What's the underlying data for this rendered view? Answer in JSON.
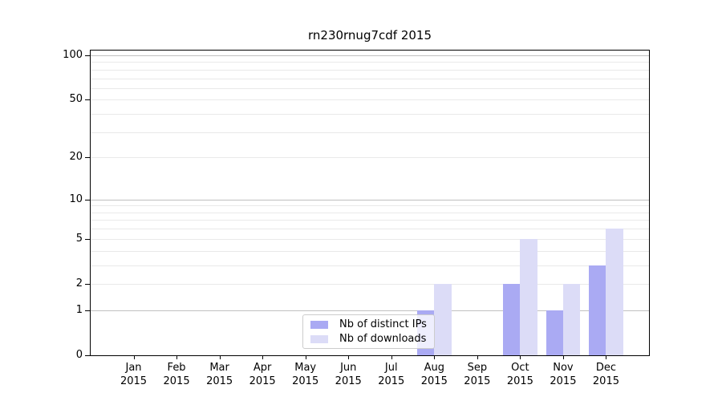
{
  "chart_data": {
    "type": "bar",
    "title": "rn230rnug7cdf 2015",
    "categories": [
      "Jan 2015",
      "Feb 2015",
      "Mar 2015",
      "Apr 2015",
      "May 2015",
      "Jun 2015",
      "Jul 2015",
      "Aug 2015",
      "Sep 2015",
      "Oct 2015",
      "Nov 2015",
      "Dec 2015"
    ],
    "series": [
      {
        "name": "Nb of distinct IPs",
        "color": "#aaaaf3",
        "values": [
          0,
          0,
          0,
          0,
          0,
          0,
          0,
          1,
          0,
          2,
          1,
          3
        ]
      },
      {
        "name": "Nb of downloads",
        "color": "#dcdcf7",
        "values": [
          0,
          0,
          0,
          0,
          0,
          0,
          0,
          2,
          0,
          5,
          2,
          6
        ]
      }
    ],
    "yticks": [
      0,
      1,
      2,
      5,
      10,
      20,
      50,
      100
    ],
    "ylim": [
      0,
      100
    ],
    "scale": "log1p",
    "grid": {
      "major": [
        1,
        10,
        100
      ],
      "minor": [
        2,
        3,
        4,
        5,
        6,
        7,
        8,
        9,
        20,
        30,
        40,
        50,
        60,
        70,
        80,
        90
      ],
      "major_color": "#c0c0c0",
      "minor_color": "#e9e9e9"
    },
    "legend_position": "inside-bottom-center",
    "axis_color": "#000000",
    "background_color": "#ffffff"
  }
}
